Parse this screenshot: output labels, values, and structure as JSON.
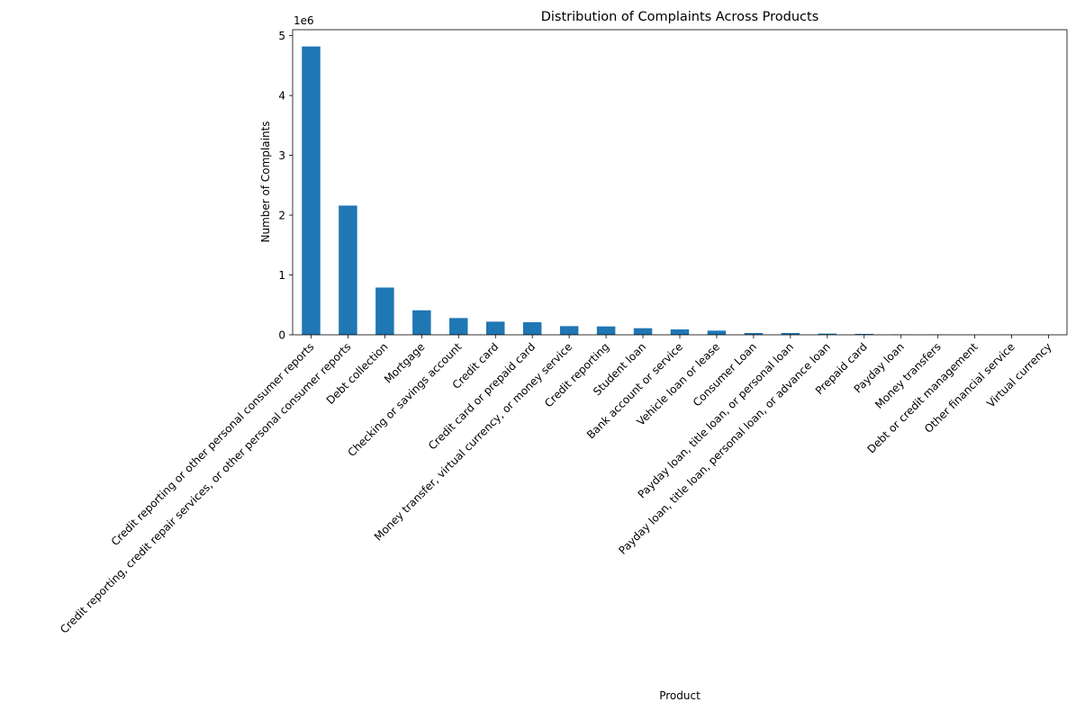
{
  "chart_data": {
    "type": "bar",
    "title": "Distribution of Complaints Across Products",
    "xlabel": "Product",
    "ylabel": "Number of Complaints",
    "offset_label": "1e6",
    "ylim": [
      0,
      5.1
    ],
    "yticks": [
      0,
      1,
      2,
      3,
      4,
      5
    ],
    "grid": false,
    "legend": "none",
    "bar_color": "#1f77b4",
    "categories": [
      "Credit reporting or other personal consumer reports",
      "Credit reporting, credit repair services, or other personal consumer reports",
      "Debt collection",
      "Mortgage",
      "Checking or savings account",
      "Credit card",
      "Credit card or prepaid card",
      "Money transfer, virtual currency, or money service",
      "Credit reporting",
      "Student loan",
      "Bank account or service",
      "Vehicle loan or lease",
      "Consumer Loan",
      "Payday loan, title loan, or personal loan",
      "Payday loan, title loan, personal loan, or advance loan",
      "Prepaid card",
      "Payday loan",
      "Money transfers",
      "Debt or credit management",
      "Other financial service",
      "Virtual currency"
    ],
    "values": [
      4.82,
      2.16,
      0.79,
      0.41,
      0.28,
      0.22,
      0.21,
      0.145,
      0.14,
      0.11,
      0.09,
      0.07,
      0.03,
      0.03,
      0.02,
      0.015,
      0.006,
      0.005,
      0.001,
      0.001,
      0.0002
    ]
  }
}
